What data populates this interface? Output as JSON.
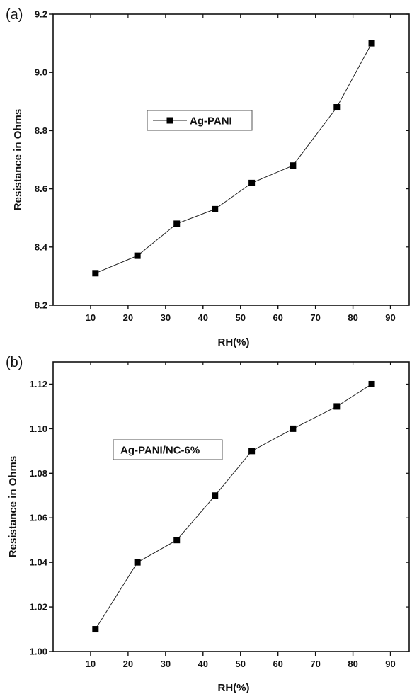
{
  "chart_data": [
    {
      "type": "line",
      "panel_label": "(a)",
      "x": [
        11.3,
        22.5,
        33,
        43.2,
        53,
        64,
        75.7,
        85
      ],
      "series": [
        {
          "name": "Ag-PANI",
          "values": [
            8.31,
            8.37,
            8.48,
            8.53,
            8.62,
            8.68,
            8.88,
            9.1
          ]
        }
      ],
      "xlabel": "RH(%)",
      "ylabel": "Resistance in Ohms",
      "xlim": [
        0,
        95
      ],
      "ylim": [
        8.2,
        9.2
      ],
      "xticks": [
        10,
        20,
        30,
        40,
        50,
        60,
        70,
        80,
        90
      ],
      "xtick_labels": [
        "10",
        "20",
        "30",
        "40",
        "50",
        "60",
        "70",
        "80",
        "90"
      ],
      "yticks": [
        8.2,
        8.4,
        8.6,
        8.8,
        9.0,
        9.2
      ],
      "ytick_labels": [
        "8.2",
        "8.4",
        "8.6",
        "8.8",
        "9.0",
        "9.2"
      ],
      "marker": "square",
      "grid": false,
      "legend_position": "inside, upper-left"
    },
    {
      "type": "line",
      "panel_label": "(b)",
      "x": [
        11.3,
        22.5,
        33,
        43.2,
        53,
        64,
        75.7,
        85
      ],
      "series": [
        {
          "name": "Ag-PANI/NC-6%",
          "values": [
            1.01,
            1.04,
            1.05,
            1.07,
            1.09,
            1.1,
            1.11,
            1.12
          ]
        }
      ],
      "xlabel": "RH(%)",
      "ylabel": "Resistance in Ohms",
      "xlim": [
        0,
        95
      ],
      "ylim": [
        1.0,
        1.13
      ],
      "xticks": [
        10,
        20,
        30,
        40,
        50,
        60,
        70,
        80,
        90
      ],
      "xtick_labels": [
        "10",
        "20",
        "30",
        "40",
        "50",
        "60",
        "70",
        "80",
        "90"
      ],
      "yticks": [
        1.0,
        1.02,
        1.04,
        1.06,
        1.08,
        1.1,
        1.12
      ],
      "ytick_labels": [
        "1.00",
        "1.02",
        "1.04",
        "1.06",
        "1.08",
        "1.10",
        "1.12"
      ],
      "marker": "square",
      "grid": false,
      "legend_position": "inside, upper-left",
      "legend_marker_shown": false
    }
  ]
}
